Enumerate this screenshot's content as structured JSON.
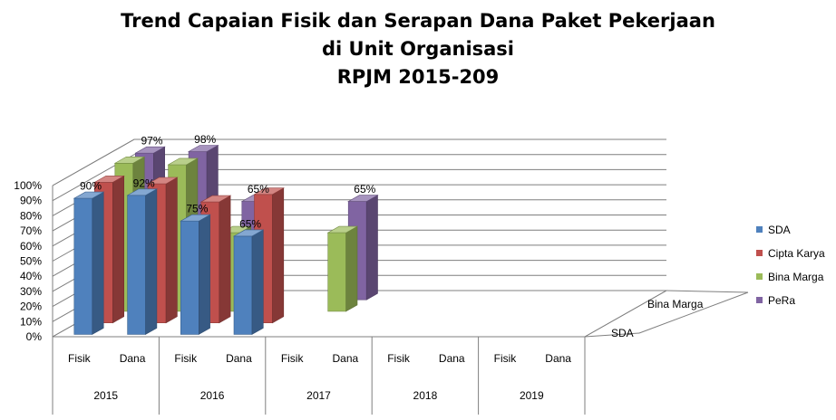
{
  "title": {
    "line1": "Trend Capaian Fisik dan Serapan Dana Paket Pekerjaan",
    "line2": "di Unit Organisasi",
    "line3": "RPJM 2015-209"
  },
  "chart_data": {
    "type": "bar",
    "subtype": "3d-clustered",
    "title": "Trend Capaian Fisik dan Serapan Dana Paket Pekerjaan di Unit Organisasi RPJM 2015-209",
    "groups": [
      "2015",
      "2016",
      "2017",
      "2018",
      "2019"
    ],
    "subcategories": [
      "Fisik",
      "Dana"
    ],
    "categories": [
      "2015 Fisik",
      "2015 Dana",
      "2016 Fisik",
      "2016 Dana",
      "2017 Fisik",
      "2017 Dana",
      "2018 Fisik",
      "2018 Dana",
      "2019 Fisik",
      "2019 Dana"
    ],
    "depth_labels": [
      "SDA",
      "Bina Marga"
    ],
    "y_ticks": [
      "0%",
      "10%",
      "20%",
      "30%",
      "40%",
      "50%",
      "60%",
      "70%",
      "80%",
      "90%",
      "100%"
    ],
    "ylim": [
      0,
      100
    ],
    "grid": true,
    "legend_position": "right",
    "series": [
      {
        "name": "SDA",
        "color": "#4F81BD",
        "values": [
          90,
          92,
          75,
          65,
          null,
          null,
          null,
          null,
          null,
          null
        ],
        "labels": [
          "90%",
          "92%",
          "75%",
          "65%",
          "",
          "",
          "",
          "",
          "",
          ""
        ]
      },
      {
        "name": "Cipta Karya",
        "color": "#C0504D",
        "values": [
          93,
          92,
          80,
          85,
          null,
          null,
          null,
          null,
          null,
          null
        ],
        "labels": [
          "",
          "",
          "",
          "",
          "",
          "",
          "",
          "",
          "",
          ""
        ]
      },
      {
        "name": "Bina Marga",
        "color": "#9BBB59",
        "values": [
          98,
          97,
          52,
          null,
          52,
          null,
          null,
          null,
          null,
          null
        ],
        "labels": [
          "",
          "",
          "",
          "",
          "",
          "",
          "",
          "",
          "",
          ""
        ]
      },
      {
        "name": "PeRa",
        "color": "#8064A2",
        "values": [
          97,
          98,
          65,
          null,
          65,
          null,
          null,
          null,
          null,
          null
        ],
        "labels": [
          "97%",
          "98%",
          "65%",
          "",
          "65%",
          "",
          "",
          "",
          "",
          ""
        ]
      }
    ]
  }
}
